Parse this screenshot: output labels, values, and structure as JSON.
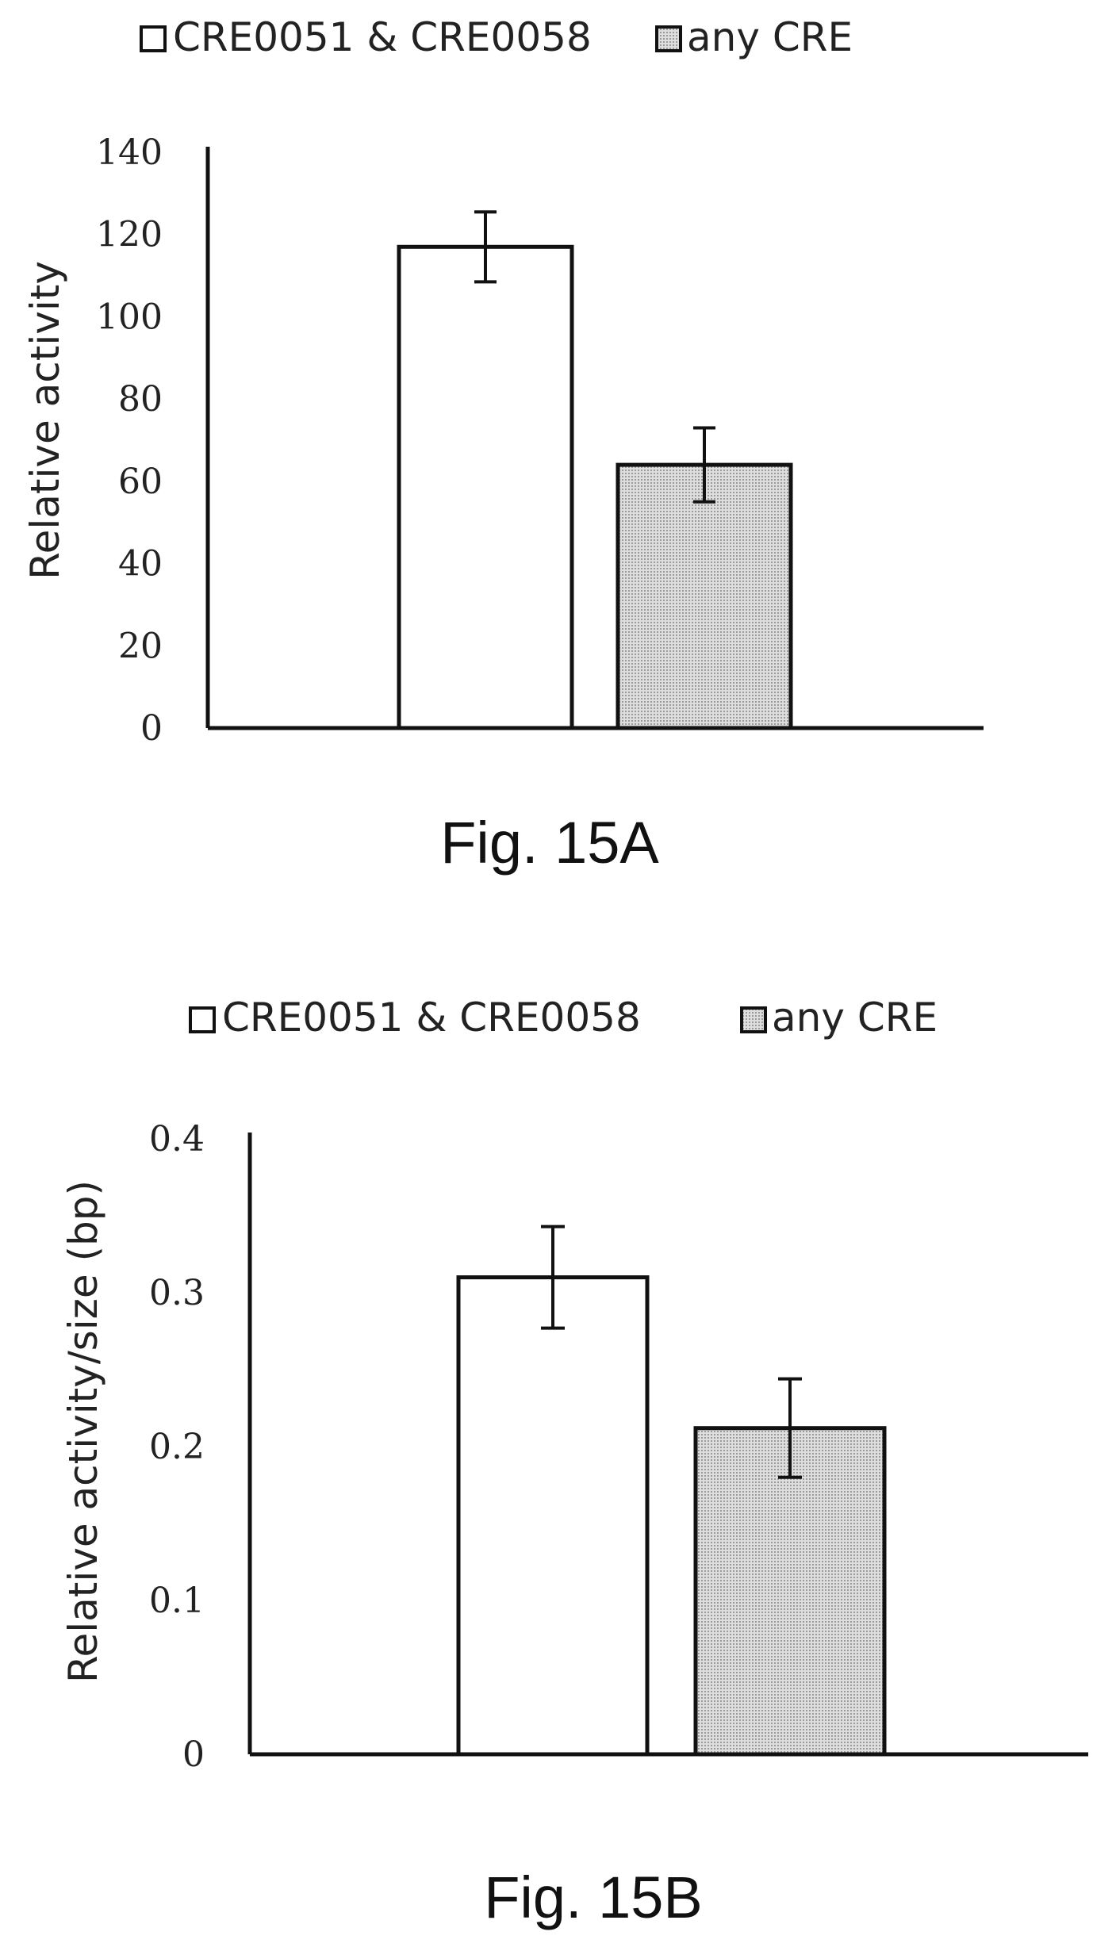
{
  "colors": {
    "open_bar_fill": "#ffffff",
    "shaded_bar_fill": "#d4d4d4",
    "outline": "#111111"
  },
  "chart_data": [
    {
      "type": "bar",
      "caption": "Fig. 15A",
      "title": "",
      "xlabel": "",
      "ylabel": "Relative activity",
      "ylim": [
        0,
        140
      ],
      "yticks": [
        0,
        20,
        40,
        60,
        80,
        100,
        120,
        140
      ],
      "ytick_labels": [
        "0",
        "20",
        "40",
        "60",
        "80",
        "100",
        "120",
        "140"
      ],
      "grid": false,
      "legend_position": "top",
      "series": [
        {
          "name": "CRE0051 & CRE0058",
          "values": [
            117
          ],
          "error": [
            8.5
          ],
          "pattern": "open"
        },
        {
          "name": "any CRE",
          "values": [
            64
          ],
          "error": [
            9
          ],
          "pattern": "shaded"
        }
      ]
    },
    {
      "type": "bar",
      "caption": "Fig. 15B",
      "title": "",
      "xlabel": "",
      "ylabel": "Relative activity/size (bp)",
      "ylim": [
        0,
        0.4
      ],
      "yticks": [
        0,
        0.1,
        0.2,
        0.3,
        0.4
      ],
      "ytick_labels": [
        "0",
        "0.1",
        "0.2",
        "0.3",
        "0.4"
      ],
      "grid": false,
      "legend_position": "top",
      "series": [
        {
          "name": "CRE0051 & CRE0058",
          "values": [
            0.31
          ],
          "error": [
            0.033
          ],
          "pattern": "open"
        },
        {
          "name": "any CRE",
          "values": [
            0.212
          ],
          "error": [
            0.032
          ],
          "pattern": "shaded"
        }
      ]
    }
  ]
}
